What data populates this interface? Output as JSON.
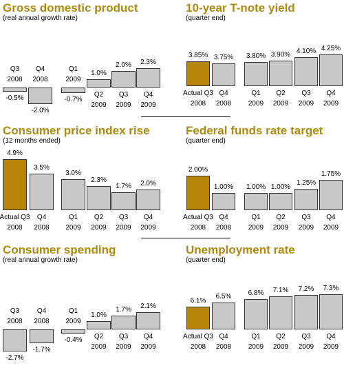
{
  "chart_data": [
    {
      "type": "bar",
      "title": "Gross domestic product",
      "subtitle": "(real annual growth rate)",
      "categories": [
        "Q3\n2008",
        "Q4\n2008",
        "Q1\n2009",
        "Q2\n2009",
        "Q3\n2009",
        "Q4\n2009"
      ],
      "values": [
        -0.5,
        -2.0,
        -0.7,
        1.0,
        2.0,
        2.3
      ],
      "value_labels": [
        "-0.5%",
        "-2.0%",
        "-0.7%",
        "1.0%",
        "2.0%",
        "2.3%"
      ],
      "highlight": []
    },
    {
      "type": "bar",
      "title": "10-year T-note yield",
      "subtitle": "(quarter end)",
      "categories": [
        "Actual Q3\n2008",
        "Q4\n2008",
        "Q1\n2009",
        "Q2\n2009",
        "Q3\n2009",
        "Q4\n2009"
      ],
      "values": [
        3.85,
        3.75,
        3.8,
        3.9,
        4.1,
        4.25
      ],
      "value_labels": [
        "3.85%",
        "3.75%",
        "3.80%",
        "3.90%",
        "4.10%",
        "4.25%"
      ],
      "highlight": [
        0
      ]
    },
    {
      "type": "bar",
      "title": "Consumer price index rise",
      "subtitle": "(12 months ended)",
      "categories": [
        "Actual Q3\n2008",
        "Q4\n2008",
        "Q1\n2009",
        "Q2\n2009",
        "Q3\n2009",
        "Q4\n2009"
      ],
      "values": [
        4.9,
        3.5,
        3.0,
        2.3,
        1.7,
        2.0
      ],
      "value_labels": [
        "4.9%",
        "3.5%",
        "3.0%",
        "2.3%",
        "1.7%",
        "2.0%"
      ],
      "highlight": [
        0
      ]
    },
    {
      "type": "bar",
      "title": "Federal funds rate target",
      "subtitle": "(quarter end)",
      "categories": [
        "Actual Q3\n2008",
        "Q4\n2008",
        "Q1\n2009",
        "Q2\n2009",
        "Q3\n2009",
        "Q4\n2009"
      ],
      "values": [
        2.0,
        1.0,
        1.0,
        1.0,
        1.25,
        1.75
      ],
      "value_labels": [
        "2.00%",
        "1.00%",
        "1.00%",
        "1.00%",
        "1.25%",
        "1.75%"
      ],
      "highlight": [
        0
      ]
    },
    {
      "type": "bar",
      "title": "Consumer spending",
      "subtitle": "(real annual growth rate)",
      "categories": [
        "Q3\n2008",
        "Q4\n2008",
        "Q1\n2009",
        "Q2\n2009",
        "Q3\n2009",
        "Q4\n2009"
      ],
      "values": [
        -2.7,
        -1.7,
        -0.4,
        1.0,
        1.7,
        2.1
      ],
      "value_labels": [
        "-2.7%",
        "-1.7%",
        "-0.4%",
        "1.0%",
        "1.7%",
        "2.1%"
      ],
      "highlight": []
    },
    {
      "type": "bar",
      "title": "Unemployment rate",
      "subtitle": "(quarter end)",
      "categories": [
        "Actual Q3\n2008",
        "Q4\n2008",
        "Q1\n2009",
        "Q2\n2009",
        "Q3\n2009",
        "Q4\n2009"
      ],
      "values": [
        6.1,
        6.5,
        6.8,
        7.1,
        7.2,
        7.3
      ],
      "value_labels": [
        "6.1%",
        "6.5%",
        "6.8%",
        "7.1%",
        "7.2%",
        "7.3%"
      ],
      "highlight": [
        0
      ]
    }
  ],
  "colors": {
    "title": "#b08a10",
    "highlight_bar": "#b8860b",
    "bar": "#c8c8c8",
    "bar_border": "#333333"
  }
}
